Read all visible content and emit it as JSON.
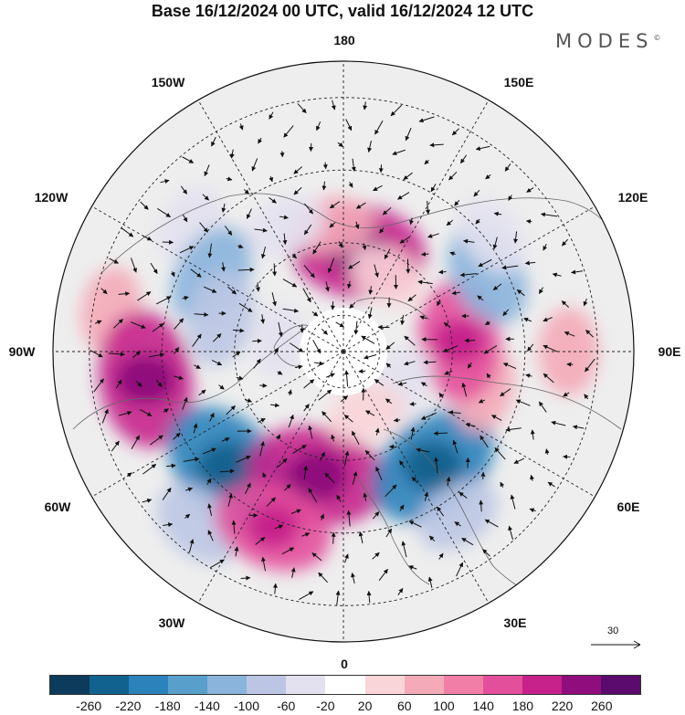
{
  "title": "Base 16/12/2024 00 UTC, valid 16/12/2024 12 UTC",
  "brand": "MODES",
  "brand_mark": "©",
  "longitude_labels": {
    "lon_180": "180",
    "lon_150w": "150W",
    "lon_150e": "150E",
    "lon_120w": "120W",
    "lon_120e": "120E",
    "lon_90w": "90W",
    "lon_90e": "90E",
    "lon_60w": "60W",
    "lon_60e": "60E",
    "lon_30w": "30W",
    "lon_30e": "30E",
    "lon_0": "0"
  },
  "reference_vector": {
    "label": "30"
  },
  "colorbar": {
    "colors": [
      "#0c3b5c",
      "#12628f",
      "#2c83bb",
      "#589fcc",
      "#8ab4db",
      "#bcc6e4",
      "#e3e1f0",
      "#ffffff",
      "#f9d4d8",
      "#f4aab8",
      "#f07ea6",
      "#e44f9c",
      "#c7218c",
      "#8f0d7c",
      "#5b0a6e"
    ],
    "tick_labels": [
      "-260",
      "-220",
      "-180",
      "-140",
      "-100",
      "-60",
      "-20",
      "20",
      "60",
      "100",
      "140",
      "180",
      "220",
      "260"
    ]
  },
  "anomaly_cells": [
    {
      "name": "anomaly-positive-north-pacific",
      "lat": 62,
      "lon": 172,
      "value": 190
    },
    {
      "name": "anomaly-positive-bering",
      "lat": 55,
      "lon": -175,
      "value": 60
    },
    {
      "name": "anomaly-negative-alaska",
      "lat": 52,
      "lon": -155,
      "value": -60
    },
    {
      "name": "anomaly-negative-gulf-alaska",
      "lat": 35,
      "lon": -130,
      "value": -60
    },
    {
      "name": "anomaly-negative-pacific-nw",
      "lat": 48,
      "lon": -120,
      "value": -110
    },
    {
      "name": "anomaly-negative-canada",
      "lat": 55,
      "lon": -105,
      "value": -90
    },
    {
      "name": "anomaly-positive-central-america",
      "lat": 25,
      "lon": -100,
      "value": 70
    },
    {
      "name": "anomaly-positive-southeast-us",
      "lat": 35,
      "lon": -82,
      "value": 190
    },
    {
      "name": "anomaly-negative-west-atlantic",
      "lat": 45,
      "lon": -45,
      "value": -200
    },
    {
      "name": "anomaly-negative-atlantic-south",
      "lat": 28,
      "lon": -40,
      "value": -90
    },
    {
      "name": "anomaly-positive-north-atlantic",
      "lat": 55,
      "lon": -12,
      "value": 200
    },
    {
      "name": "anomaly-positive-west-europe",
      "lat": 38,
      "lon": -22,
      "value": 150
    },
    {
      "name": "anomaly-negative-east-europe",
      "lat": 50,
      "lon": 38,
      "value": -190
    },
    {
      "name": "anomaly-negative-mediterranean",
      "lat": 35,
      "lon": 35,
      "value": -70
    },
    {
      "name": "anomaly-positive-central-asia",
      "lat": 50,
      "lon": 75,
      "value": 70
    },
    {
      "name": "anomaly-positive-west-siberia",
      "lat": 58,
      "lon": 95,
      "value": 150
    },
    {
      "name": "anomaly-positive-south-asia",
      "lat": 28,
      "lon": 90,
      "value": 70
    },
    {
      "name": "anomaly-negative-east-asia",
      "lat": 45,
      "lon": 118,
      "value": -110
    },
    {
      "name": "anomaly-negative-north-china",
      "lat": 38,
      "lon": 128,
      "value": -60
    },
    {
      "name": "anomaly-negative-kara-sea",
      "lat": 72,
      "lon": 60,
      "value": -60
    },
    {
      "name": "anomaly-positive-barents",
      "lat": 72,
      "lon": 20,
      "value": 50
    },
    {
      "name": "anomaly-negative-arctic-canada",
      "lat": 72,
      "lon": -100,
      "value": -40
    },
    {
      "name": "anomaly-positive-east-siberia",
      "lat": 66,
      "lon": 150,
      "value": 50
    }
  ]
}
